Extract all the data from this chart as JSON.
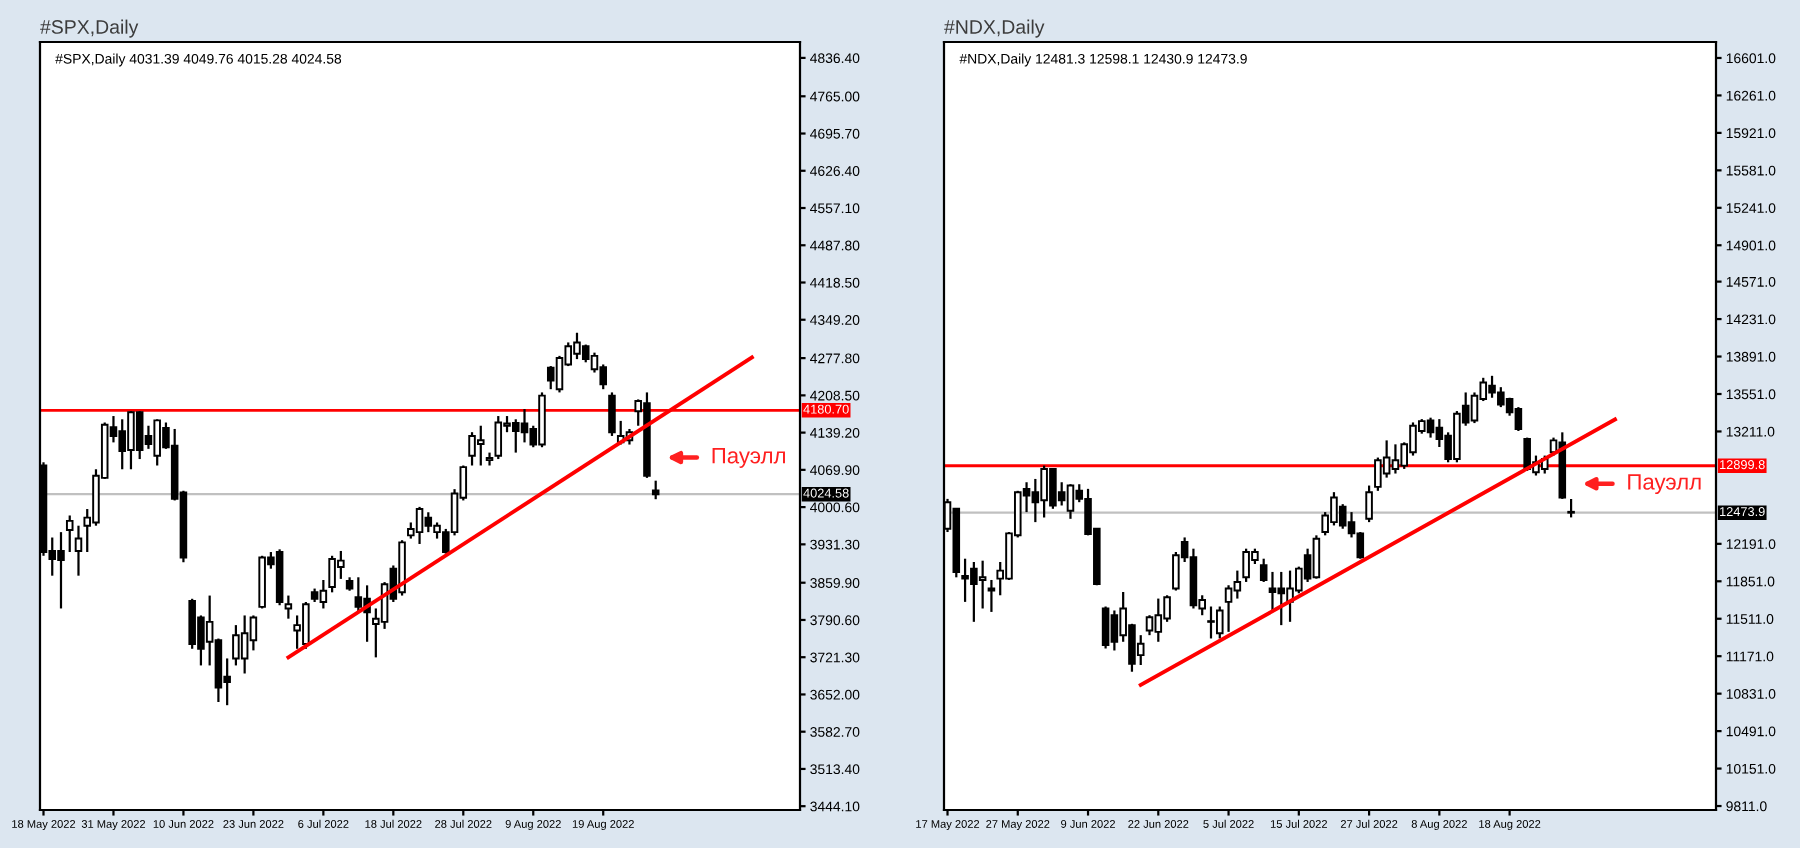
{
  "chart_data": [
    {
      "type": "candlestick",
      "title": "#SPX,Daily",
      "subtitle": "#SPX,Daily 4031.39 4049.76 4015.28 4024.58",
      "categories": [
        "18 May 2022",
        null,
        null,
        null,
        null,
        null,
        null,
        null,
        "31 May 2022",
        null,
        null,
        null,
        null,
        null,
        null,
        null,
        "10 Jun 2022",
        null,
        null,
        null,
        null,
        null,
        null,
        null,
        "23 Jun 2022",
        null,
        null,
        null,
        null,
        null,
        null,
        null,
        "6 Jul 2022",
        null,
        null,
        null,
        null,
        null,
        null,
        null,
        "18 Jul 2022",
        null,
        null,
        null,
        null,
        null,
        null,
        null,
        "28 Jul 2022",
        null,
        null,
        null,
        null,
        null,
        null,
        null,
        "9 Aug 2022",
        null,
        null,
        null,
        null,
        null,
        null,
        null,
        "19 Aug 2022",
        null,
        null,
        null,
        null,
        null,
        null,
        null,
        null,
        null,
        null,
        null,
        null,
        null,
        null,
        null,
        null,
        null,
        null,
        null,
        null,
        null,
        null
      ],
      "ohlc": [
        [
          4078,
          4084,
          3910,
          3917
        ],
        [
          3919,
          3944,
          3873,
          3904
        ],
        [
          3919,
          3954,
          3812,
          3902
        ],
        [
          3958,
          3985,
          3917,
          3975
        ],
        [
          3919,
          3966,
          3873,
          3942
        ],
        [
          3966,
          3997,
          3917,
          3981
        ],
        [
          3972,
          4071,
          3966,
          4059
        ],
        [
          4055,
          4158,
          4053,
          4154
        ],
        [
          4149,
          4170,
          4121,
          4133
        ],
        [
          4142,
          4164,
          4071,
          4105
        ],
        [
          4107,
          4179,
          4071,
          4177
        ],
        [
          4177,
          4179,
          4090,
          4107
        ],
        [
          4133,
          4152,
          4109,
          4118
        ],
        [
          4096,
          4164,
          4078,
          4162
        ],
        [
          4148,
          4158,
          4109,
          4112
        ],
        [
          4115,
          4146,
          4013,
          4016
        ],
        [
          4028,
          4031,
          3898,
          3907
        ],
        [
          3826,
          3830,
          3737,
          3746
        ],
        [
          3795,
          3799,
          3706,
          3737
        ],
        [
          3750,
          3836,
          3706,
          3787
        ],
        [
          3753,
          3756,
          3638,
          3665
        ],
        [
          3685,
          3719,
          3632,
          3675
        ],
        [
          3719,
          3781,
          3706,
          3762
        ],
        [
          3719,
          3799,
          3691,
          3766
        ],
        [
          3753,
          3799,
          3734,
          3795
        ],
        [
          3815,
          3910,
          3812,
          3907
        ],
        [
          3907,
          3917,
          3886,
          3894
        ],
        [
          3917,
          3922,
          3818,
          3824
        ],
        [
          3812,
          3836,
          3793,
          3820
        ],
        [
          3771,
          3799,
          3737,
          3781
        ],
        [
          3746,
          3824,
          3737,
          3820
        ],
        [
          3842,
          3849,
          3824,
          3830
        ],
        [
          3824,
          3865,
          3812,
          3845
        ],
        [
          3852,
          3910,
          3842,
          3904
        ],
        [
          3889,
          3919,
          3867,
          3901
        ],
        [
          3863,
          3870,
          3845,
          3849
        ],
        [
          3833,
          3870,
          3805,
          3815
        ],
        [
          3830,
          3855,
          3750,
          3805
        ],
        [
          3783,
          3812,
          3721,
          3793
        ],
        [
          3787,
          3861,
          3774,
          3857
        ],
        [
          3886,
          3892,
          3824,
          3830
        ],
        [
          3842,
          3939,
          3836,
          3935
        ],
        [
          3948,
          3972,
          3942,
          3960
        ],
        [
          3954,
          4001,
          3932,
          3997
        ],
        [
          3981,
          3991,
          3954,
          3966
        ],
        [
          3954,
          3972,
          3942,
          3966
        ],
        [
          3954,
          3960,
          3914,
          3917
        ],
        [
          3954,
          4034,
          3948,
          4026
        ],
        [
          4018,
          4078,
          4013,
          4075
        ],
        [
          4096,
          4140,
          4078,
          4133
        ],
        [
          4118,
          4152,
          4078,
          4125
        ],
        [
          4088,
          4102,
          4078,
          4092
        ],
        [
          4096,
          4170,
          4090,
          4158
        ],
        [
          4152,
          4170,
          4140,
          4156
        ],
        [
          4157,
          4164,
          4102,
          4142
        ],
        [
          4156,
          4183,
          4121,
          4140
        ],
        [
          4146,
          4152,
          4112,
          4117
        ],
        [
          4117,
          4214,
          4112,
          4208
        ],
        [
          4260,
          4263,
          4220,
          4236
        ],
        [
          4220,
          4282,
          4214,
          4278
        ],
        [
          4266,
          4307,
          4263,
          4300
        ],
        [
          4286,
          4325,
          4276,
          4307
        ],
        [
          4300,
          4303,
          4270,
          4276
        ],
        [
          4257,
          4288,
          4251,
          4282
        ],
        [
          4261,
          4266,
          4220,
          4229
        ],
        [
          4208,
          4214,
          4133,
          4140
        ],
        [
          4121,
          4161,
          4117,
          4133
        ],
        [
          4125,
          4146,
          4117,
          4140
        ],
        [
          4179,
          4201,
          4152,
          4198
        ],
        [
          4194,
          4214,
          4055,
          4059
        ],
        [
          4031.39,
          4049.76,
          4015.28,
          4024.58
        ],
        null,
        null,
        null,
        null,
        null,
        null,
        null,
        null,
        null,
        null,
        null,
        null,
        null,
        null,
        null,
        null
      ],
      "series": [
        {
          "type": "line",
          "color": "#ff0000",
          "values": [
            null,
            null,
            null,
            null,
            null,
            null,
            null,
            null,
            null,
            null,
            null,
            null,
            null,
            null,
            null,
            null,
            null,
            null,
            null,
            null,
            null,
            null,
            null,
            null,
            null,
            null,
            null,
            null,
            3721,
            null,
            null,
            null,
            null,
            null,
            null,
            null,
            null,
            null,
            null,
            null,
            null,
            null,
            null,
            null,
            null,
            null,
            null,
            null,
            null,
            null,
            null,
            null,
            null,
            null,
            null,
            null,
            null,
            null,
            null,
            null,
            null,
            null,
            null,
            null,
            null,
            null,
            null,
            null,
            null,
            null,
            null,
            null,
            null,
            null,
            null,
            null,
            null,
            null,
            null,
            null,
            null,
            4279,
            null,
            null,
            null,
            null,
            null
          ]
        }
      ],
      "ylim": [
        3437,
        4866
      ],
      "yticks": [
        {
          "value": 4836.4,
          "label": "4836.40"
        },
        {
          "value": 4765,
          "label": "4765.00"
        },
        {
          "value": 4695.7,
          "label": "4695.70"
        },
        {
          "value": 4626.4,
          "label": "4626.40"
        },
        {
          "value": 4557.1,
          "label": "4557.10"
        },
        {
          "value": 4487.8,
          "label": "4487.80"
        },
        {
          "value": 4418.5,
          "label": "4418.50"
        },
        {
          "value": 4349.2,
          "label": "4349.20"
        },
        {
          "value": 4277.8,
          "label": "4277.80"
        },
        {
          "value": 4208.5,
          "label": "4208.50"
        },
        {
          "value": 4139.2,
          "label": "4139.20"
        },
        {
          "value": 4069.9,
          "label": "4069.90"
        },
        {
          "value": 4000.6,
          "label": "4000.60"
        },
        {
          "value": 3931.3,
          "label": "3931.30"
        },
        {
          "value": 3859.9,
          "label": "3859.90"
        },
        {
          "value": 3790.6,
          "label": "3790.60"
        },
        {
          "value": 3721.3,
          "label": "3721.30"
        },
        {
          "value": 3652,
          "label": "3652.00"
        },
        {
          "value": 3582.7,
          "label": "3582.70"
        },
        {
          "value": 3513.4,
          "label": "3513.40"
        },
        {
          "value": 3444.1,
          "label": "3444.10"
        }
      ],
      "ref_lines": [
        {
          "axis": "y",
          "value": 4180.7,
          "label": "4180.70",
          "color": "#ff0000"
        },
        {
          "axis": "y",
          "value": 4024.58,
          "label": "4024.58",
          "color": "#c0c0c0"
        }
      ],
      "annotations": [
        "Пауэлл"
      ]
    },
    {
      "type": "candlestick",
      "title": "#NDX,Daily",
      "subtitle": "#NDX,Daily 12481.3 12598.1 12430.9 12473.9",
      "categories": [
        "17 May 2022",
        null,
        null,
        null,
        null,
        null,
        null,
        null,
        "27 May 2022",
        null,
        null,
        null,
        null,
        null,
        null,
        null,
        "9 Jun 2022",
        null,
        null,
        null,
        null,
        null,
        null,
        null,
        "22 Jun 2022",
        null,
        null,
        null,
        null,
        null,
        null,
        null,
        "5 Jul 2022",
        null,
        null,
        null,
        null,
        null,
        null,
        null,
        "15 Jul 2022",
        null,
        null,
        null,
        null,
        null,
        null,
        null,
        "27 Jul 2022",
        null,
        null,
        null,
        null,
        null,
        null,
        null,
        "8 Aug 2022",
        null,
        null,
        null,
        null,
        null,
        null,
        null,
        "18 Aug 2022",
        null,
        null,
        null,
        null,
        null,
        null,
        null,
        null,
        null,
        null,
        null,
        null,
        null,
        null,
        null,
        null,
        null,
        null,
        null,
        null,
        null,
        null,
        null
      ],
      "ohlc": [
        [
          12328,
          12599,
          12298,
          12569
        ],
        [
          12509,
          12515,
          11887,
          11936
        ],
        [
          11899,
          12056,
          11664,
          11875
        ],
        [
          11966,
          12026,
          11483,
          11827
        ],
        [
          11863,
          12038,
          11604,
          11887
        ],
        [
          11767,
          11863,
          11573,
          11785
        ],
        [
          11875,
          12026,
          11724,
          11948
        ],
        [
          11875,
          12298,
          11863,
          12286
        ],
        [
          12268,
          12672,
          12249,
          12660
        ],
        [
          12690,
          12750,
          12479,
          12630
        ],
        [
          12660,
          12780,
          12388,
          12569
        ],
        [
          12587,
          12901,
          12430,
          12871
        ],
        [
          12871,
          12877,
          12509,
          12539
        ],
        [
          12660,
          12750,
          12539,
          12587
        ],
        [
          12491,
          12732,
          12418,
          12720
        ],
        [
          12672,
          12732,
          12569,
          12599
        ],
        [
          12599,
          12690,
          12268,
          12280
        ],
        [
          12328,
          12334,
          11815,
          11827
        ],
        [
          11604,
          11622,
          11241,
          11272
        ],
        [
          11543,
          11586,
          11223,
          11302
        ],
        [
          11362,
          11754,
          11302,
          11604
        ],
        [
          11453,
          11465,
          11030,
          11103
        ],
        [
          11181,
          11362,
          11091,
          11284
        ],
        [
          11404,
          11543,
          11362,
          11525
        ],
        [
          11392,
          11694,
          11302,
          11543
        ],
        [
          11513,
          11724,
          11483,
          11706
        ],
        [
          11785,
          12117,
          11767,
          12087
        ],
        [
          12207,
          12249,
          12026,
          12069
        ],
        [
          12069,
          12147,
          11604,
          11634
        ],
        [
          11604,
          11724,
          11543,
          11682
        ],
        [
          11489,
          11622,
          11332,
          11483
        ],
        [
          11380,
          11622,
          11332,
          11586
        ],
        [
          11664,
          11815,
          11392,
          11785
        ],
        [
          11767,
          11948,
          11694,
          11845
        ],
        [
          11887,
          12147,
          11845,
          12117
        ],
        [
          12044,
          12147,
          12008,
          12117
        ],
        [
          11996,
          12056,
          11845,
          11863
        ],
        [
          11785,
          11936,
          11573,
          11754
        ],
        [
          11785,
          11936,
          11453,
          11742
        ],
        [
          11664,
          11948,
          11483,
          11785
        ],
        [
          11767,
          11984,
          11742,
          11966
        ],
        [
          12087,
          12147,
          11845,
          11875
        ],
        [
          11887,
          12268,
          11875,
          12237
        ],
        [
          12298,
          12479,
          12268,
          12449
        ],
        [
          12388,
          12660,
          12358,
          12611
        ],
        [
          12527,
          12551,
          12328,
          12358
        ],
        [
          12388,
          12479,
          12249,
          12286
        ],
        [
          12286,
          12298,
          12056,
          12069
        ],
        [
          12418,
          12720,
          12388,
          12660
        ],
        [
          12708,
          12974,
          12672,
          12949
        ],
        [
          12829,
          13130,
          12792,
          12974
        ],
        [
          12871,
          13094,
          12829,
          12949
        ],
        [
          12901,
          13112,
          12871,
          13094
        ],
        [
          13022,
          13293,
          12992,
          13263
        ],
        [
          13215,
          13323,
          13191,
          13305
        ],
        [
          13311,
          13336,
          13155,
          13203
        ],
        [
          13245,
          13323,
          13070,
          13142
        ],
        [
          13173,
          13203,
          12931,
          12961
        ],
        [
          12961,
          13396,
          12931,
          13372
        ],
        [
          13444,
          13565,
          13263,
          13293
        ],
        [
          13311,
          13565,
          13287,
          13535
        ],
        [
          13505,
          13698,
          13487,
          13656
        ],
        [
          13626,
          13716,
          13517,
          13565
        ],
        [
          13565,
          13613,
          13432,
          13456
        ],
        [
          13505,
          13517,
          13354,
          13384
        ],
        [
          13414,
          13432,
          13215,
          13233
        ],
        [
          13142,
          13155,
          12853,
          12871
        ],
        [
          12841,
          12992,
          12811,
          12931
        ],
        [
          12871,
          12992,
          12829,
          12961
        ],
        [
          13022,
          13155,
          12992,
          13130
        ],
        [
          13112,
          13203,
          12599,
          12611
        ],
        [
          12481.3,
          12598.1,
          12430.9,
          12473.9
        ],
        null,
        null,
        null,
        null,
        null,
        null,
        null,
        null,
        null,
        null,
        null,
        null,
        null,
        null,
        null,
        null
      ],
      "series": [
        {
          "type": "line",
          "color": "#ff0000",
          "values": [
            null,
            null,
            null,
            null,
            null,
            null,
            null,
            null,
            null,
            null,
            null,
            null,
            null,
            null,
            null,
            null,
            null,
            null,
            null,
            null,
            null,
            null,
            10910,
            null,
            null,
            null,
            null,
            null,
            null,
            null,
            null,
            null,
            null,
            null,
            null,
            null,
            null,
            null,
            null,
            null,
            null,
            null,
            null,
            null,
            null,
            null,
            null,
            null,
            null,
            null,
            null,
            null,
            null,
            null,
            null,
            null,
            null,
            null,
            null,
            null,
            null,
            null,
            null,
            null,
            null,
            null,
            null,
            null,
            null,
            null,
            null,
            null,
            null,
            null,
            null,
            null,
            13320,
            null,
            null,
            null,
            null,
            null,
            null,
            null,
            null,
            null,
            null,
            null
          ]
        }
      ],
      "ylim": [
        9775,
        16746
      ],
      "yticks": [
        {
          "value": 16601,
          "label": "16601.0"
        },
        {
          "value": 16261,
          "label": "16261.0"
        },
        {
          "value": 15921,
          "label": "15921.0"
        },
        {
          "value": 15581,
          "label": "15581.0"
        },
        {
          "value": 15241,
          "label": "15241.0"
        },
        {
          "value": 14901,
          "label": "14901.0"
        },
        {
          "value": 14571,
          "label": "14571.0"
        },
        {
          "value": 14231,
          "label": "14231.0"
        },
        {
          "value": 13891,
          "label": "13891.0"
        },
        {
          "value": 13551,
          "label": "13551.0"
        },
        {
          "value": 13211,
          "label": "13211.0"
        },
        {
          "value": 12191,
          "label": "12191.0"
        },
        {
          "value": 11851,
          "label": "11851.0"
        },
        {
          "value": 11511,
          "label": "11511.0"
        },
        {
          "value": 11171,
          "label": "11171.0"
        },
        {
          "value": 10831,
          "label": "10831.0"
        },
        {
          "value": 10491,
          "label": "10491.0"
        },
        {
          "value": 10151,
          "label": "10151.0"
        },
        {
          "value": 9811,
          "label": "9811.0"
        }
      ],
      "ref_lines": [
        {
          "axis": "y",
          "value": 12899.8,
          "label": "12899.8",
          "color": "#ff0000"
        },
        {
          "axis": "y",
          "value": 12473.9,
          "label": "12473.9",
          "color": "#c0c0c0"
        }
      ],
      "annotations": [
        "Пауэлл"
      ]
    }
  ]
}
